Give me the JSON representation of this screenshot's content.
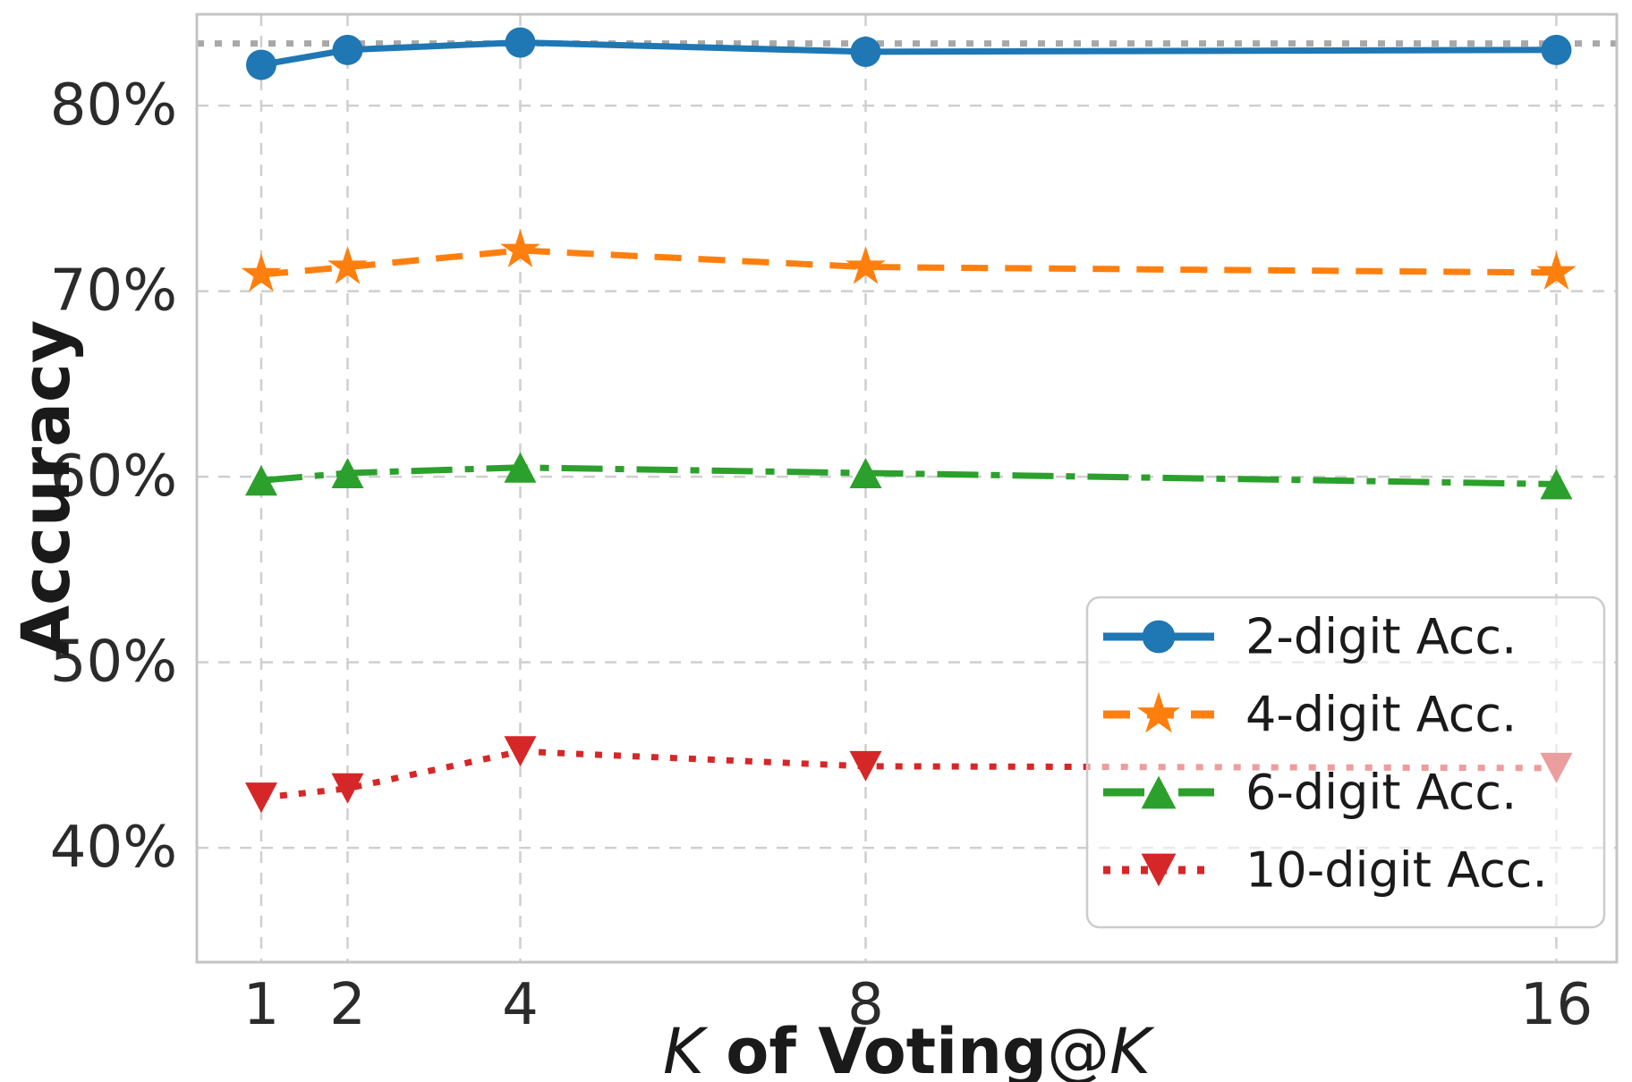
{
  "figure": {
    "background": "#ffffff",
    "tick_color": "#2b2b2b",
    "label_color": "#1a1a1a",
    "grid_color": "#cfcfcf",
    "spine_color": "#c4c4c4"
  },
  "chart_data": {
    "type": "line",
    "title": "",
    "ylabel": "Accuracy",
    "xlabel_plain": "K of Voting@K",
    "xlabel_parts": [
      {
        "text": "K",
        "style": "italic"
      },
      {
        "text": " of Voting",
        "style": "bold"
      },
      {
        "text": "@",
        "style": "regular"
      },
      {
        "text": "K",
        "style": "italic"
      }
    ],
    "x": [
      1,
      2,
      4,
      8,
      16
    ],
    "x_tick_labels": [
      "1",
      "2",
      "4",
      "8",
      "16"
    ],
    "y_ticks": [
      80,
      70,
      60,
      50,
      40
    ],
    "y_tick_labels": [
      "80%",
      "70%",
      "60%",
      "50%",
      "40%"
    ],
    "xlim": [
      0.254,
      16.7
    ],
    "ylim": [
      33.84,
      84.92
    ],
    "grid": true,
    "grid_style": "dashed",
    "reference_line": {
      "value": 83.35,
      "color": "#a8a8a8",
      "style": "dotted"
    },
    "series": [
      {
        "name": "2-digit Acc.",
        "color": "#1f77b4",
        "linestyle": "solid",
        "marker": "circle",
        "values": [
          82.2,
          83.0,
          83.4,
          82.9,
          83.0
        ]
      },
      {
        "name": "4-digit Acc.",
        "color": "#ff7f0e",
        "linestyle": "dashed",
        "marker": "star",
        "values": [
          70.9,
          71.3,
          72.2,
          71.3,
          71.0
        ]
      },
      {
        "name": "6-digit Acc.",
        "color": "#2ca02c",
        "linestyle": "dashdot",
        "marker": "triangle-up",
        "values": [
          59.8,
          60.2,
          60.5,
          60.2,
          59.6
        ]
      },
      {
        "name": "10-digit Acc.",
        "color": "#d62728",
        "linestyle": "dotted",
        "marker": "triangle-down",
        "values": [
          42.7,
          43.2,
          45.2,
          44.4,
          44.3
        ]
      }
    ],
    "legend": {
      "location": "lower right",
      "labels": [
        "2-digit Acc.",
        "4-digit Acc.",
        "6-digit Acc.",
        "10-digit Acc."
      ],
      "frame_color": "#cccccc",
      "frame_fill": "#ffffff",
      "frame_alpha": 0.55
    }
  }
}
